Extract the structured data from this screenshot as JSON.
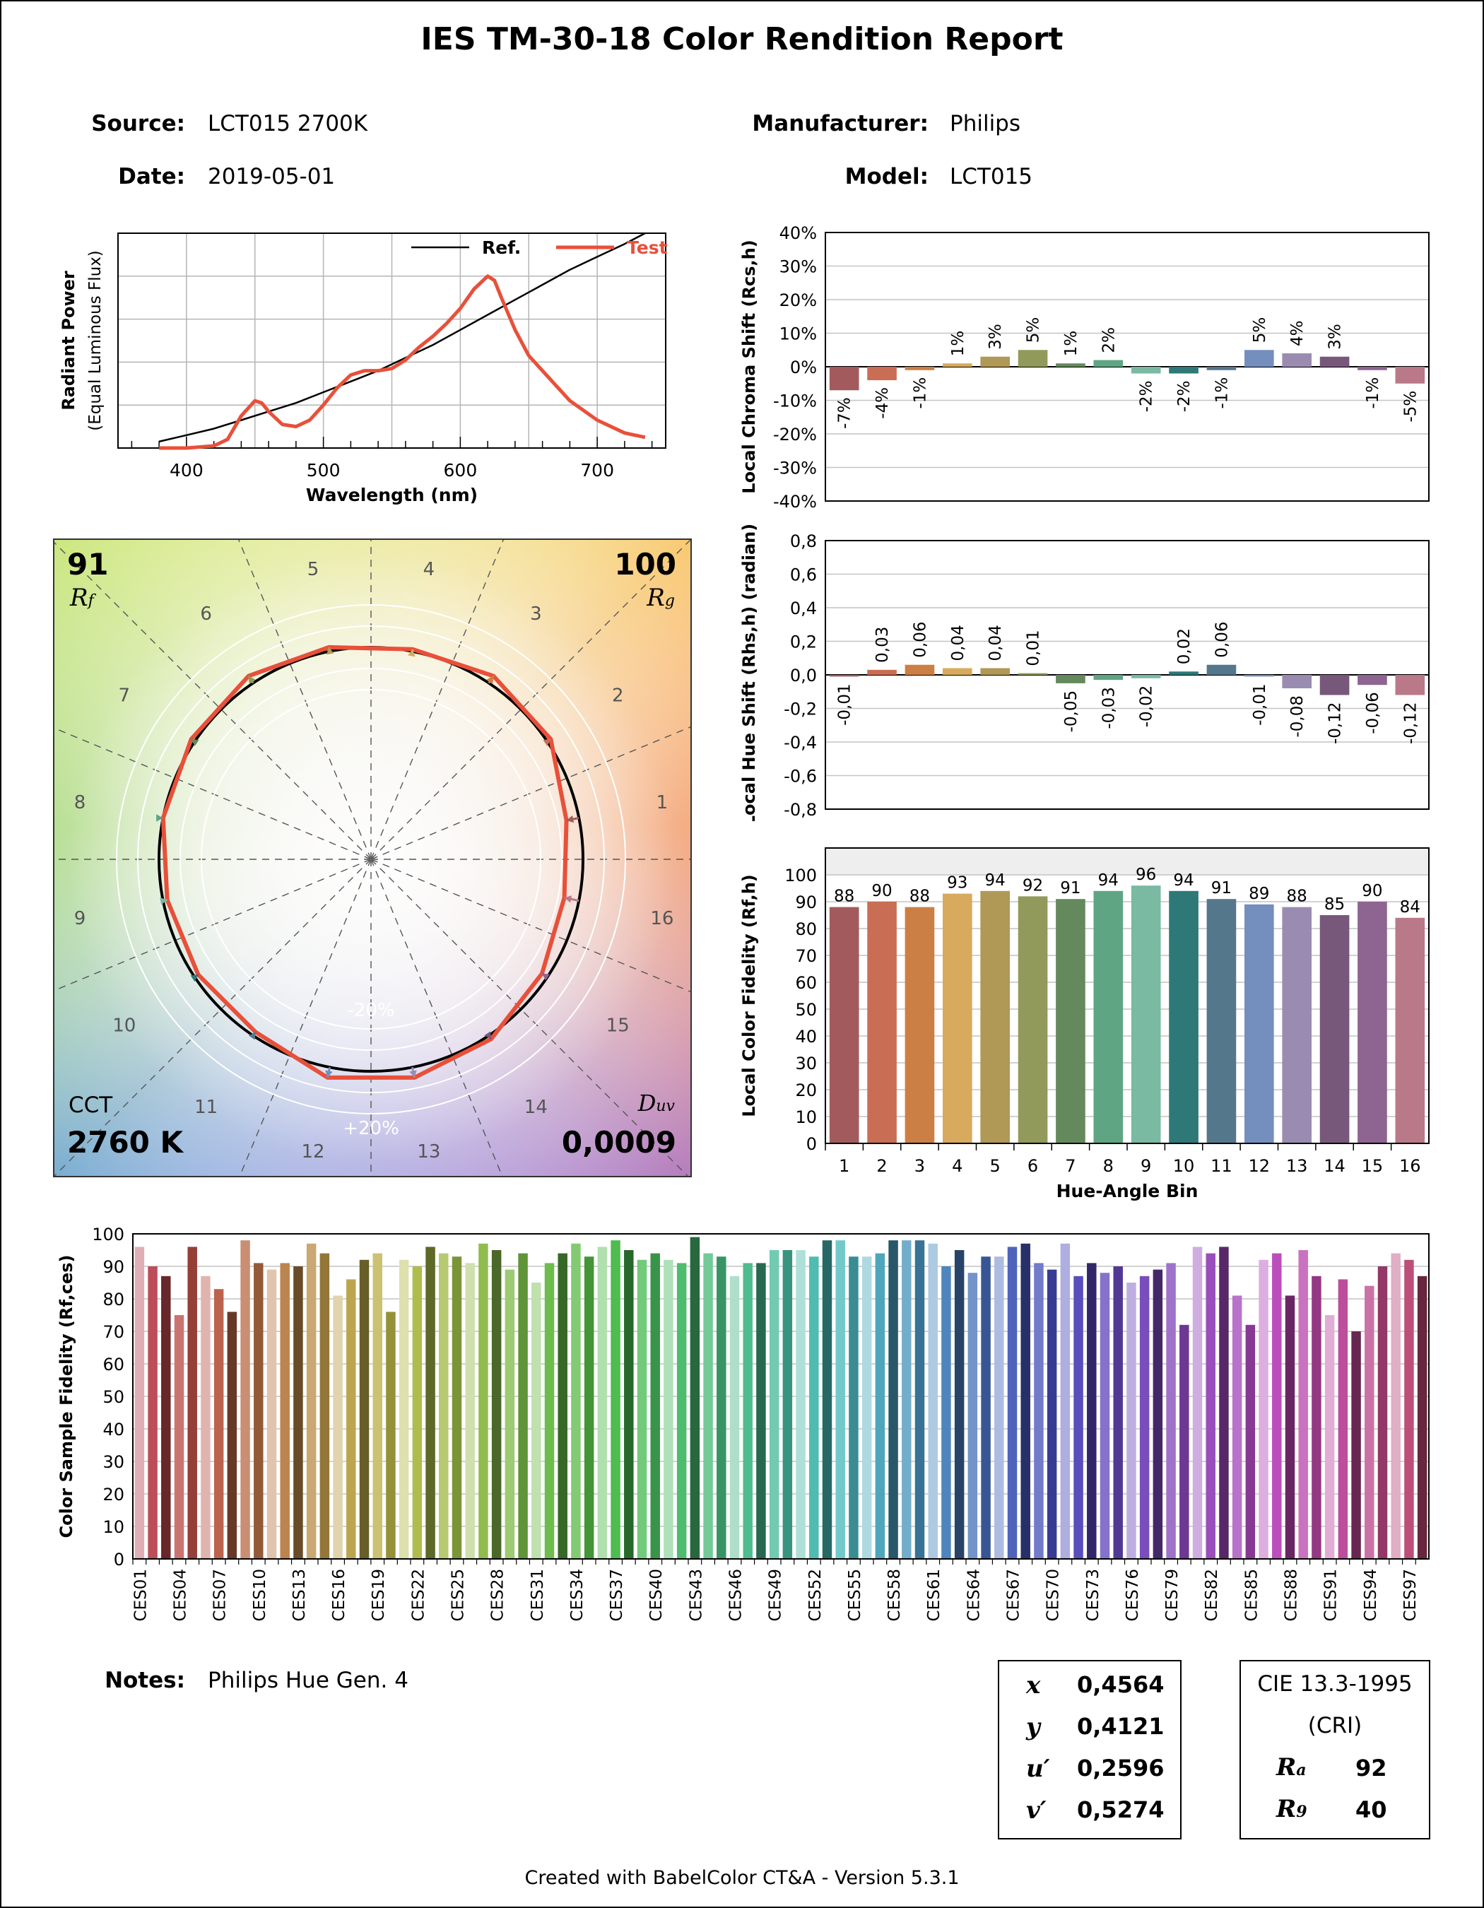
{
  "report": {
    "title": "IES TM-30-18 Color Rendition Report",
    "source_label": "Source:",
    "source": "LCT015 2700K",
    "date_label": "Date:",
    "date": "2019-05-01",
    "manufacturer_label": "Manufacturer:",
    "manufacturer": "Philips",
    "model_label": "Model:",
    "model": "LCT015",
    "notes_label": "Notes:",
    "notes": "Philips Hue Gen. 4",
    "footer": "Created with BabelColor CT&A - Version 5.3.1"
  },
  "colorimetry": {
    "x_label": "x",
    "x": "0,4564",
    "y_label": "y",
    "y": "0,4121",
    "u_label": "u′",
    "u": "0,2596",
    "v_label": "v′",
    "v": "0,5274"
  },
  "cri": {
    "title": "CIE 13.3-1995",
    "subtitle": "(CRI)",
    "ra_label": "R",
    "ra_sub": "a",
    "ra": "92",
    "r9_label": "R",
    "r9_sub": "9",
    "r9": "40"
  },
  "vector_graphic": {
    "rf": "91",
    "rf_label": "R",
    "rf_sub": "f",
    "rg": "100",
    "rg_label": "R",
    "rg_sub": "g",
    "cct_label": "CCT",
    "cct": "2760 K",
    "duv_label": "D",
    "duv_sub": "uv",
    "duv": "0,0009",
    "minus_label": "-20%",
    "plus_label": "+20%",
    "bin_labels": [
      "1",
      "2",
      "3",
      "4",
      "5",
      "6",
      "7",
      "8",
      "9",
      "10",
      "11",
      "12",
      "13",
      "14",
      "15",
      "16"
    ],
    "test_radius_factor": [
      0.94,
      1.02,
      1.04,
      1.01,
      1.02,
      1.04,
      1.02,
      1.0,
      0.98,
      0.98,
      0.98,
      1.05,
      1.05,
      1.02,
      0.97,
      0.93
    ]
  },
  "chart_data": [
    {
      "id": "spd",
      "type": "line",
      "xlabel": "Wavelength (nm)",
      "ylabel": "Radiant Power",
      "ylabel2": "(Equal Luminous Flux)",
      "xlim": [
        350,
        750
      ],
      "x_ticks": [
        400,
        500,
        600,
        700
      ],
      "ylim": [
        0,
        1
      ],
      "legend_position": "top-right",
      "series": [
        {
          "name": "Ref.",
          "color": "#000000",
          "x": [
            380,
            400,
            420,
            440,
            460,
            480,
            500,
            520,
            540,
            560,
            580,
            600,
            620,
            640,
            660,
            680,
            700,
            720,
            735
          ],
          "y": [
            0.03,
            0.06,
            0.09,
            0.13,
            0.17,
            0.21,
            0.26,
            0.31,
            0.36,
            0.42,
            0.48,
            0.55,
            0.62,
            0.69,
            0.76,
            0.83,
            0.89,
            0.95,
            1.0
          ]
        },
        {
          "name": "Test",
          "color": "#e8503a",
          "x": [
            380,
            400,
            420,
            430,
            440,
            450,
            455,
            460,
            470,
            480,
            490,
            500,
            510,
            520,
            530,
            540,
            550,
            560,
            570,
            580,
            590,
            600,
            610,
            620,
            625,
            630,
            640,
            650,
            660,
            680,
            700,
            720,
            735
          ],
          "y": [
            0.0,
            0.0,
            0.01,
            0.04,
            0.15,
            0.22,
            0.21,
            0.17,
            0.11,
            0.1,
            0.13,
            0.2,
            0.28,
            0.34,
            0.36,
            0.36,
            0.37,
            0.41,
            0.47,
            0.52,
            0.58,
            0.65,
            0.74,
            0.8,
            0.78,
            0.7,
            0.55,
            0.43,
            0.36,
            0.22,
            0.13,
            0.07,
            0.05
          ]
        }
      ]
    },
    {
      "id": "chroma",
      "type": "bar",
      "ylabel": "Local Chroma Shift (Rcs,h)",
      "ylim": [
        -40,
        40
      ],
      "y_ticks": [
        40,
        30,
        20,
        10,
        0,
        -10,
        -20,
        -30,
        -40
      ],
      "y_tick_labels": [
        "40%",
        "30%",
        "20%",
        "10%",
        "0%",
        "-10%",
        "-20%",
        "-30%",
        "-40%"
      ],
      "categories": [
        "1",
        "2",
        "3",
        "4",
        "5",
        "6",
        "7",
        "8",
        "9",
        "10",
        "11",
        "12",
        "13",
        "14",
        "15",
        "16"
      ],
      "values": [
        -7,
        -4,
        -1,
        1,
        3,
        5,
        1,
        2,
        -2,
        -2,
        -1,
        5,
        4,
        3,
        -1,
        -5
      ],
      "value_labels": [
        "-7%",
        "-4%",
        "-1%",
        "1%",
        "3%",
        "5%",
        "1%",
        "2%",
        "-2%",
        "-2%",
        "-1%",
        "5%",
        "4%",
        "3%",
        "-1%",
        "-5%"
      ]
    },
    {
      "id": "hue",
      "type": "bar",
      "ylabel": "Local Hue Shift (Rhs,h) (radian)",
      "ylim": [
        -0.8,
        0.8
      ],
      "y_ticks": [
        0.8,
        0.6,
        0.4,
        0.2,
        0,
        -0.2,
        -0.4,
        -0.6,
        -0.8
      ],
      "y_tick_labels": [
        "0,8",
        "0,6",
        "0,4",
        "0,2",
        "0,0",
        "-0,2",
        "-0,4",
        "-0,6",
        "-0,8"
      ],
      "categories": [
        "1",
        "2",
        "3",
        "4",
        "5",
        "6",
        "7",
        "8",
        "9",
        "10",
        "11",
        "12",
        "13",
        "14",
        "15",
        "16"
      ],
      "values": [
        -0.01,
        0.03,
        0.06,
        0.04,
        0.04,
        0.01,
        -0.05,
        -0.03,
        -0.02,
        0.02,
        0.06,
        -0.01,
        -0.08,
        -0.12,
        -0.06,
        -0.12
      ],
      "value_labels": [
        "-0,01",
        "0,03",
        "0,06",
        "0,04",
        "0,04",
        "0,01",
        "-0,05",
        "-0,03",
        "-0,02",
        "0,02",
        "0,06",
        "-0,01",
        "-0,08",
        "-0,12",
        "-0,06",
        "-0,12"
      ]
    },
    {
      "id": "fidelity",
      "type": "bar",
      "ylabel": "Local Color Fidelity (Rf,h)",
      "xlabel": "Hue-Angle Bin",
      "ylim": [
        0,
        110
      ],
      "y_ticks": [
        0,
        10,
        20,
        30,
        40,
        50,
        60,
        70,
        80,
        90,
        100
      ],
      "categories": [
        "1",
        "2",
        "3",
        "4",
        "5",
        "6",
        "7",
        "8",
        "9",
        "10",
        "11",
        "12",
        "13",
        "14",
        "15",
        "16"
      ],
      "values": [
        88,
        90,
        88,
        93,
        94,
        92,
        91,
        94,
        96,
        94,
        91,
        89,
        88,
        85,
        90,
        84
      ]
    },
    {
      "id": "ces",
      "type": "bar",
      "ylabel": "Color Sample Fidelity (Rf,ces)",
      "ylim": [
        0,
        100
      ],
      "y_ticks": [
        0,
        10,
        20,
        30,
        40,
        50,
        60,
        70,
        80,
        90,
        100
      ],
      "tick_labels": [
        "CES01",
        "CES04",
        "CES07",
        "CES10",
        "CES13",
        "CES16",
        "CES19",
        "CES22",
        "CES25",
        "CES28",
        "CES31",
        "CES34",
        "CES37",
        "CES40",
        "CES43",
        "CES46",
        "CES49",
        "CES52",
        "CES55",
        "CES58",
        "CES61",
        "CES64",
        "CES67",
        "CES70",
        "CES73",
        "CES76",
        "CES79",
        "CES82",
        "CES85",
        "CES88",
        "CES91",
        "CES94",
        "CES97"
      ],
      "values": [
        96,
        90,
        87,
        75,
        96,
        87,
        83,
        76,
        98,
        91,
        89,
        91,
        90,
        97,
        94,
        81,
        86,
        92,
        94,
        76,
        92,
        90,
        96,
        94,
        93,
        91,
        97,
        95,
        89,
        94,
        85,
        91,
        94,
        97,
        93,
        96,
        98,
        95,
        92,
        94,
        92,
        91,
        99,
        94,
        93,
        87,
        91,
        91,
        95,
        95,
        95,
        93,
        98,
        98,
        93,
        93,
        94,
        98,
        98,
        98,
        97,
        90,
        95,
        88,
        93,
        93,
        96,
        97,
        91,
        89,
        97,
        87,
        91,
        88,
        90,
        85,
        87,
        89,
        91,
        72,
        96,
        94,
        96,
        81,
        72,
        92,
        94,
        81,
        95,
        87,
        75,
        86,
        70,
        84,
        90,
        94,
        92,
        87
      ]
    }
  ]
}
